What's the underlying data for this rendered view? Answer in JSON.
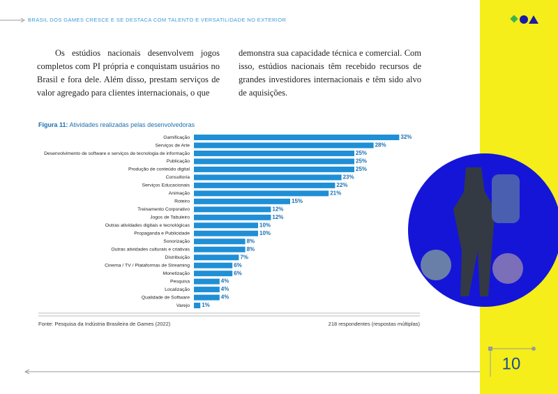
{
  "header": {
    "title": "BRASIL DOS GAMES CRESCE E SE DESTACA COM TALENTO E VERSATILIDADE NO EXTERIOR"
  },
  "body": {
    "paragraphs": [
      "Os estúdios nacionais desenvolvem jogos completos com PI própria e conquistam usuários no Brasil e fora dele. Além disso, prestam serviços de valor agregado para clientes internacionais, o que",
      "demonstra sua capacidade técnica e comercial. Com isso, estúdios nacionais têm recebido recursos de grandes investidores internacionais e têm sido alvo de aquisições."
    ]
  },
  "figure": {
    "label": "Figura 11:",
    "caption": "Atividades realizadas pelas desenvolvedoras",
    "source": "Fonte: Pesquisa da Indústria Brasileira de Games (2022)",
    "note": "218 respondentes (respostas múltiplas)"
  },
  "chart_data": {
    "type": "hbar",
    "color": "#1f8fd6",
    "categories": [
      "Gamificação",
      "Serviços de Arte",
      "Desenvolvimento de software e serviços de tecnologia de informação",
      "Publicação",
      "Produção de conteúdo digital",
      "Consultoria",
      "Serviços Educacionais",
      "Animação",
      "Roteiro",
      "Treinamento Corporativo",
      "Jogos de Tabuleiro",
      "Outras atividades digitais e tecnológicas",
      "Propaganda e Publicidade",
      "Sonorização",
      "Outras atividades culturais e criativas",
      "Distribuição",
      "Cinema / TV / Plataformas de Streaming",
      "Monetização",
      "Pesquisa",
      "Localização",
      "Qualidade de Software",
      "Varejo"
    ],
    "values": [
      32,
      28,
      25,
      25,
      25,
      23,
      22,
      21,
      15,
      12,
      12,
      10,
      10,
      8,
      8,
      7,
      6,
      6,
      4,
      4,
      4,
      1
    ],
    "value_labels": [
      "32%",
      "28%",
      "25%",
      "25%",
      "25%",
      "23%",
      "22%",
      "21%",
      "15%",
      "12%",
      "12%",
      "10%",
      "10%",
      "8%",
      "8%",
      "7%",
      "6%",
      "6%",
      "4%",
      "4%",
      "4%",
      "1%"
    ]
  },
  "page": {
    "number": "10"
  }
}
